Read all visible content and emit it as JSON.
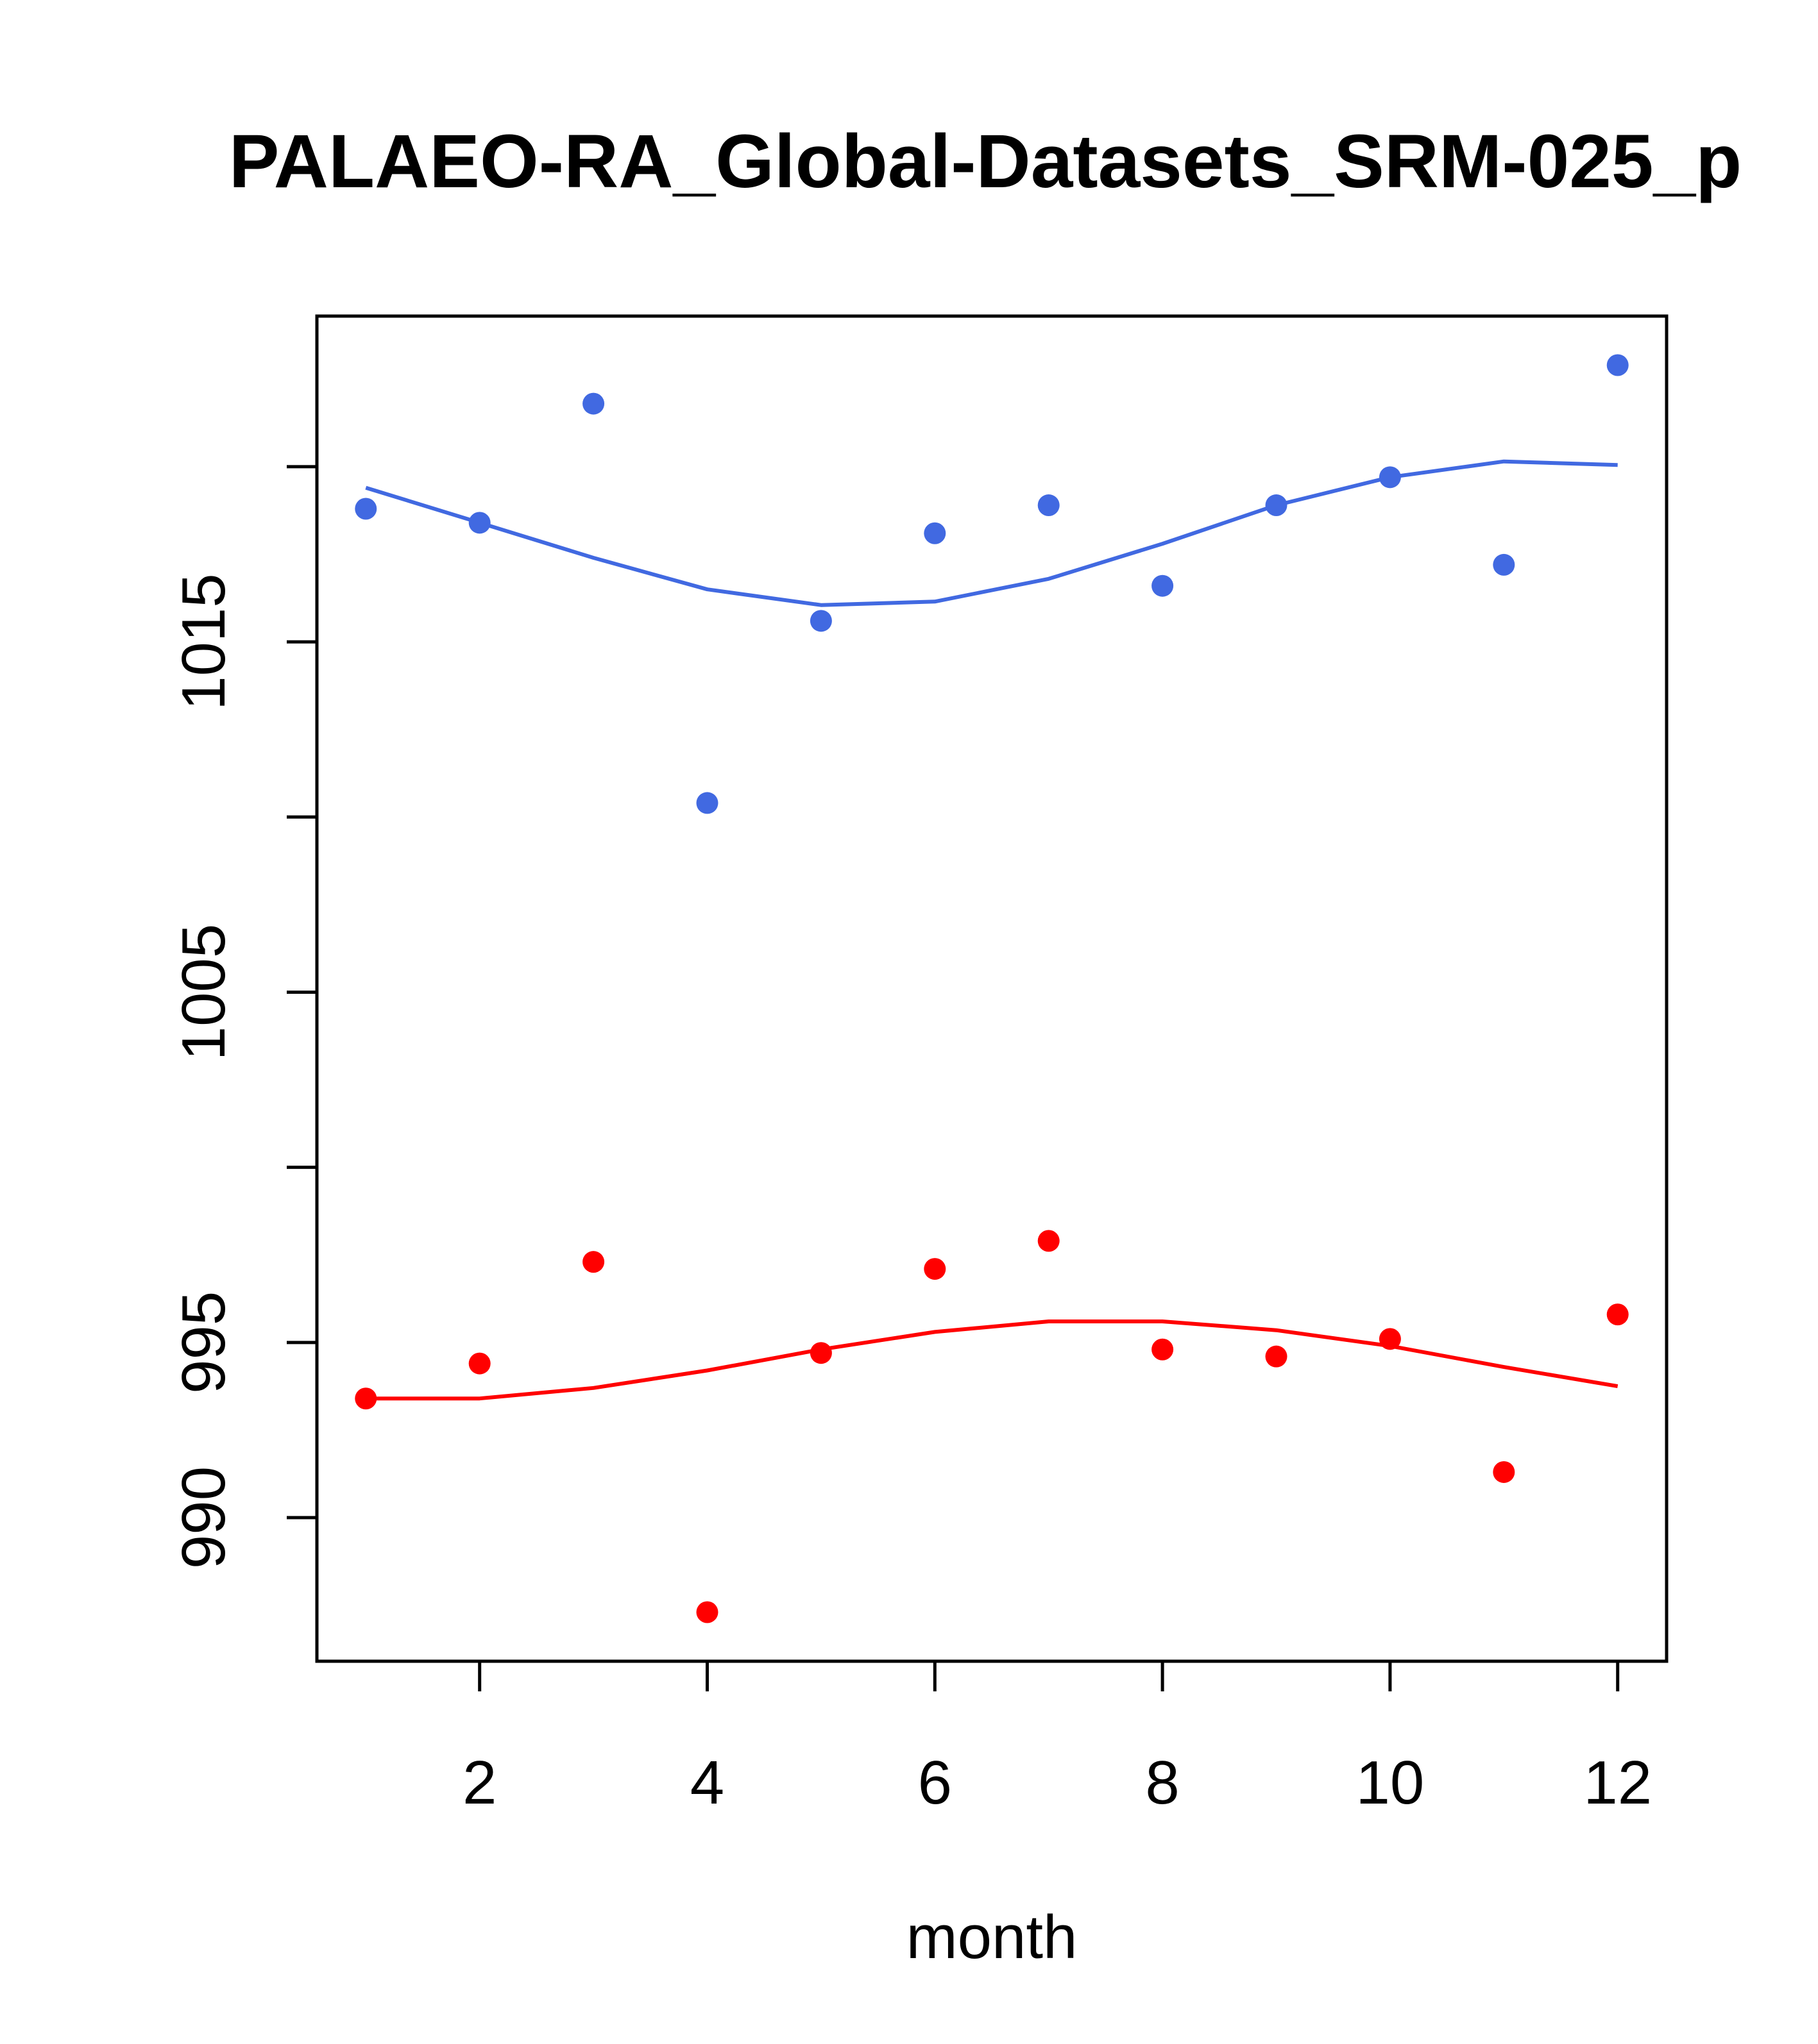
{
  "chart_data": {
    "type": "scatter",
    "title": "PALAEO-RA_Global-Datasets_SRM-025_p",
    "xlabel": "month",
    "ylabel": "",
    "xlim": [
      0.57,
      12.43
    ],
    "ylim": [
      985.9,
      1024.3
    ],
    "x_ticks": [
      2,
      4,
      6,
      8,
      10,
      12
    ],
    "x_tick_labels": [
      "2",
      "4",
      "6",
      "8",
      "10",
      "12"
    ],
    "y_ticks": [
      990,
      995,
      1000,
      1005,
      1010,
      1015,
      1020
    ],
    "y_tick_labels": [
      "990",
      "995",
      "",
      "1005",
      "",
      "1015",
      ""
    ],
    "series": [
      {
        "name": "blue",
        "color": "#4169E1",
        "x": [
          1,
          2,
          3,
          4,
          5,
          6,
          7,
          8,
          9,
          10,
          11,
          12
        ],
        "points": [
          1018.8,
          1018.4,
          1021.8,
          1010.4,
          1015.6,
          1018.1,
          1018.9,
          1016.6,
          1018.9,
          1019.7,
          1017.2,
          1022.9
        ],
        "smooth": [
          1019.4,
          1018.4,
          1017.4,
          1016.5,
          1016.05,
          1016.15,
          1016.8,
          1017.8,
          1018.9,
          1019.7,
          1020.15,
          1020.05
        ]
      },
      {
        "name": "red",
        "color": "#FF0000",
        "x": [
          1,
          2,
          3,
          4,
          5,
          6,
          7,
          8,
          9,
          10,
          11,
          12
        ],
        "points": [
          993.4,
          994.4,
          997.3,
          987.3,
          994.7,
          997.1,
          997.9,
          994.8,
          994.6,
          995.1,
          991.3,
          995.8
        ],
        "smooth": [
          993.4,
          993.4,
          993.7,
          994.2,
          994.8,
          995.3,
          995.6,
          995.6,
          995.35,
          994.9,
          994.3,
          993.75
        ]
      }
    ]
  }
}
